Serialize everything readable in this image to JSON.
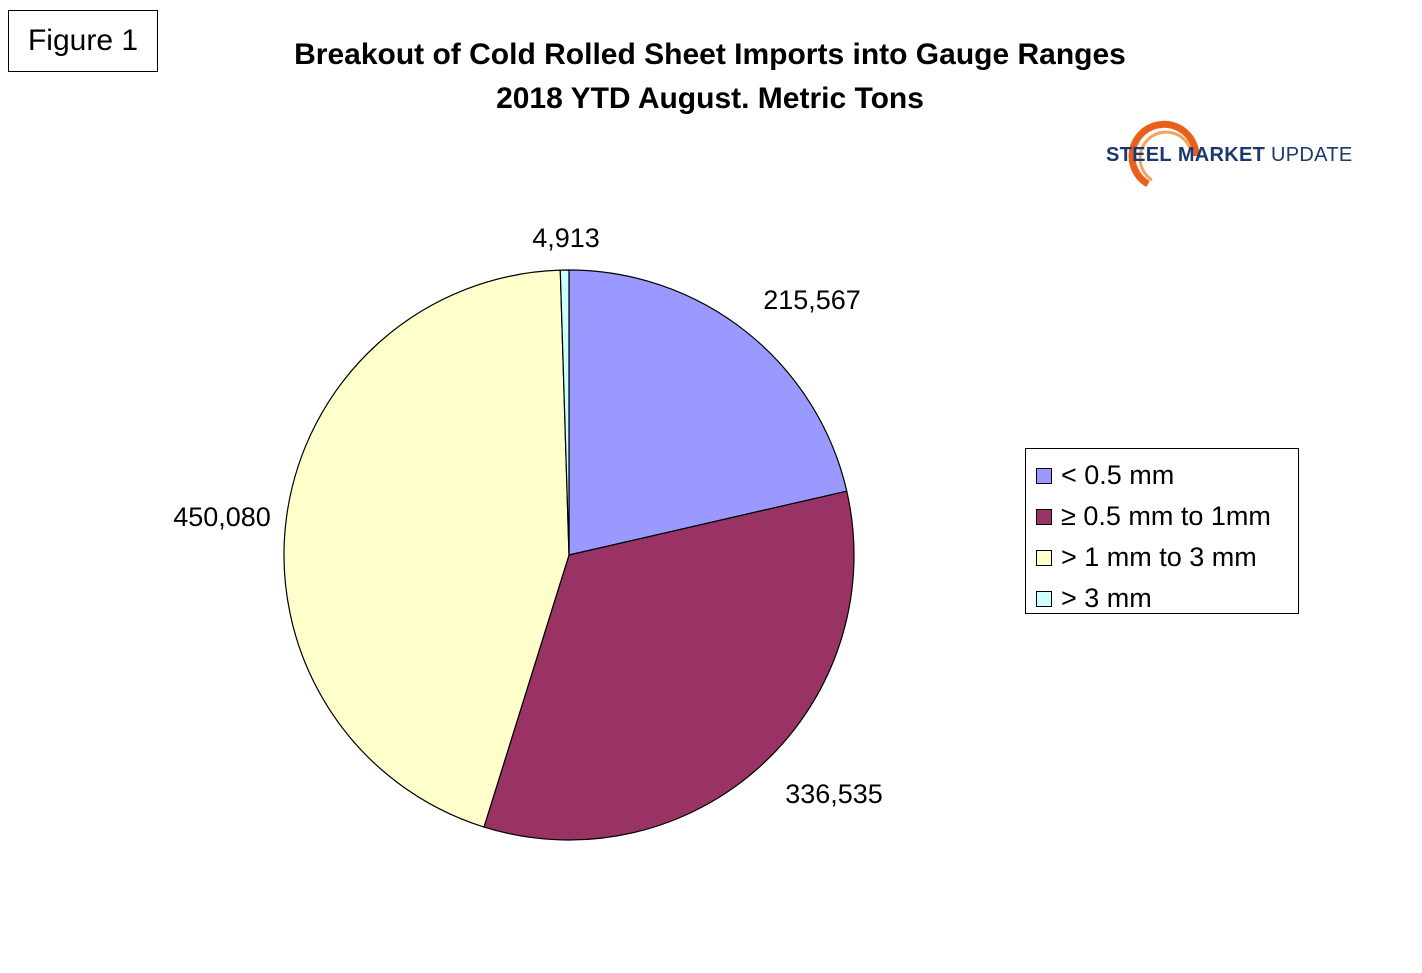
{
  "figure_label": "Figure 1",
  "logo": {
    "word1": "STEEL",
    "word2": "MARKET",
    "word3": "UPDATE"
  },
  "chart_data": {
    "type": "pie",
    "title": "Breakout of Cold Rolled Sheet Imports into Gauge Ranges",
    "subtitle": "2018 YTD August. Metric Tons",
    "legend_position": "right",
    "slices": [
      {
        "label": "< 0.5 mm",
        "value": 215567,
        "display": "215,567",
        "color": "#9999ff"
      },
      {
        "label": "≥ 0.5 mm to 1mm",
        "value": 336535,
        "display": "336,535",
        "color": "#993366"
      },
      {
        "label": "> 1 mm to 3 mm",
        "value": 450080,
        "display": "450,080",
        "color": "#ffffcc"
      },
      {
        "label": "> 3 mm",
        "value": 4913,
        "display": "4,913",
        "color": "#ccffff"
      }
    ]
  }
}
